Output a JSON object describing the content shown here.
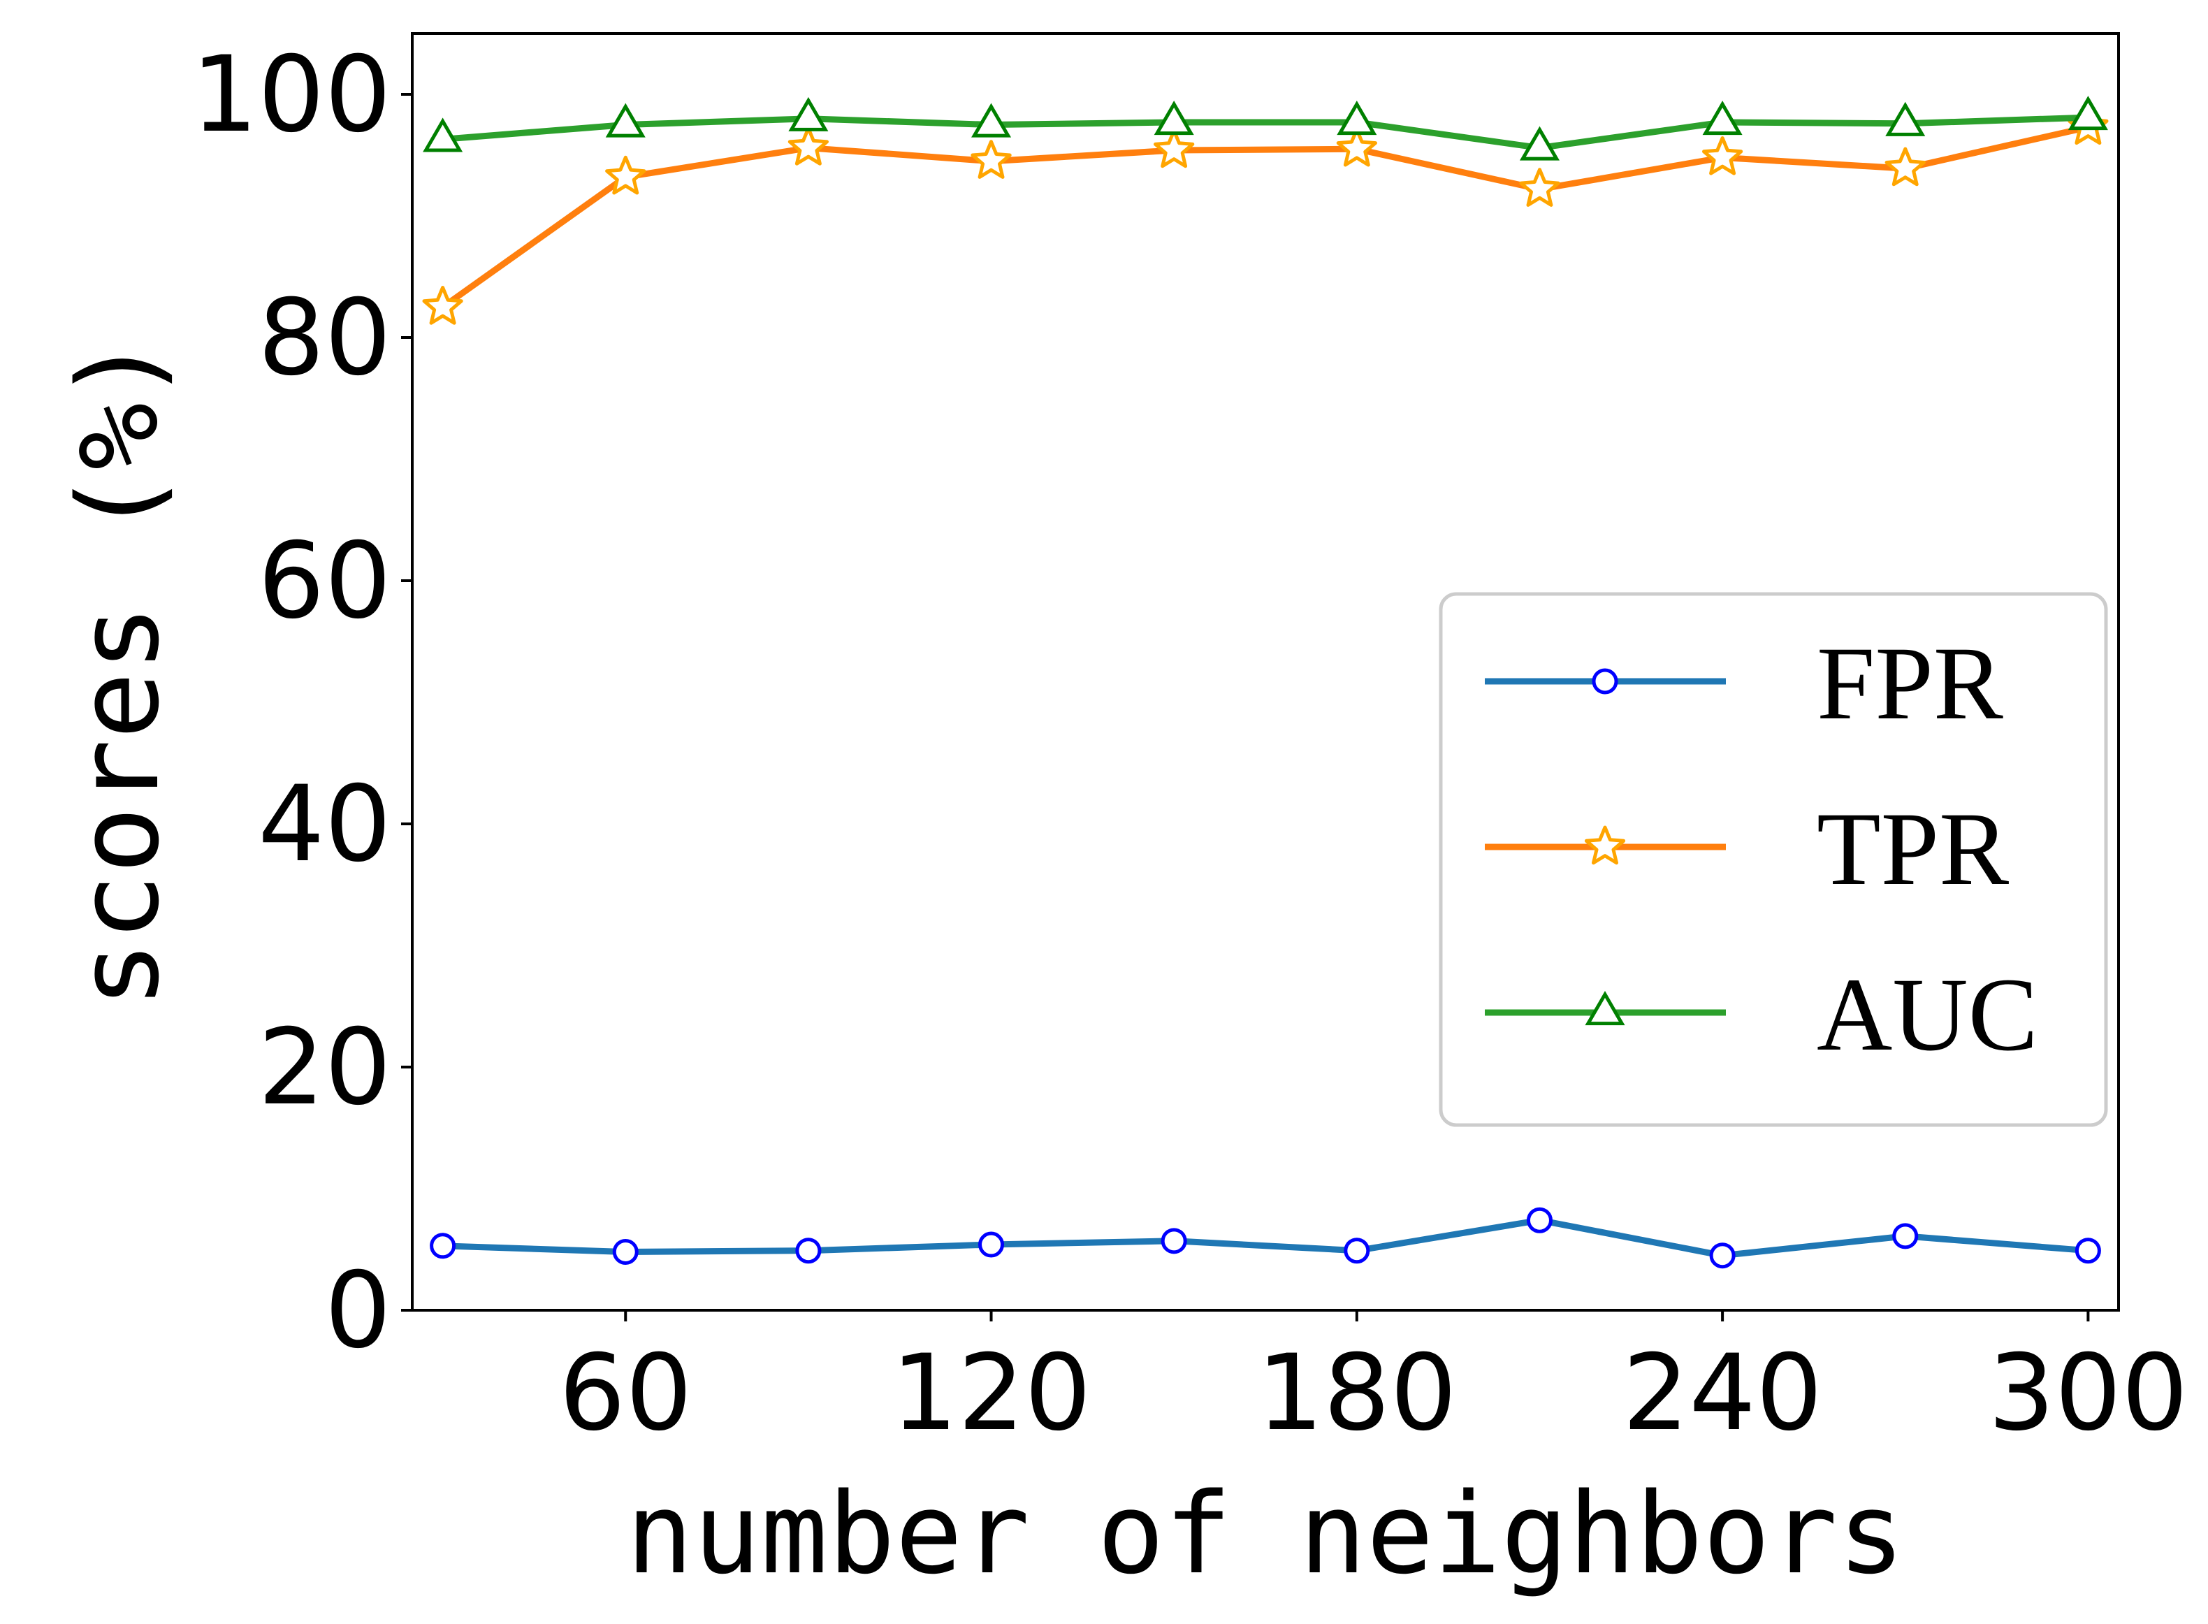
{
  "chart_data": {
    "type": "line",
    "title": "",
    "xlabel": "number of neighbors",
    "ylabel": "scores (%)",
    "x": [
      30,
      60,
      90,
      120,
      150,
      180,
      210,
      240,
      270,
      300
    ],
    "xlim": [
      25,
      305
    ],
    "ylim": [
      0,
      105
    ],
    "xticks": [
      60,
      120,
      180,
      240,
      300
    ],
    "yticks": [
      0,
      20,
      40,
      60,
      80,
      100
    ],
    "grid": false,
    "legend_position": "center-right",
    "series": [
      {
        "name": "FPR",
        "color": "#1f77b4",
        "marker": "circle",
        "marker_edge": "#0000ff",
        "values": [
          5.3,
          4.8,
          4.9,
          5.4,
          5.7,
          4.9,
          7.4,
          4.5,
          6.1,
          4.9
        ]
      },
      {
        "name": "TPR",
        "color": "#ff7f0e",
        "marker": "star",
        "marker_edge": "#ffa500",
        "values": [
          82.5,
          93.2,
          95.6,
          94.5,
          95.4,
          95.5,
          92.2,
          94.8,
          93.9,
          97.3
        ]
      },
      {
        "name": "AUC",
        "color": "#2ca02c",
        "marker": "triangle",
        "marker_edge": "#008000",
        "values": [
          96.3,
          97.5,
          98.0,
          97.5,
          97.7,
          97.7,
          95.6,
          97.7,
          97.6,
          98.1
        ]
      }
    ]
  }
}
